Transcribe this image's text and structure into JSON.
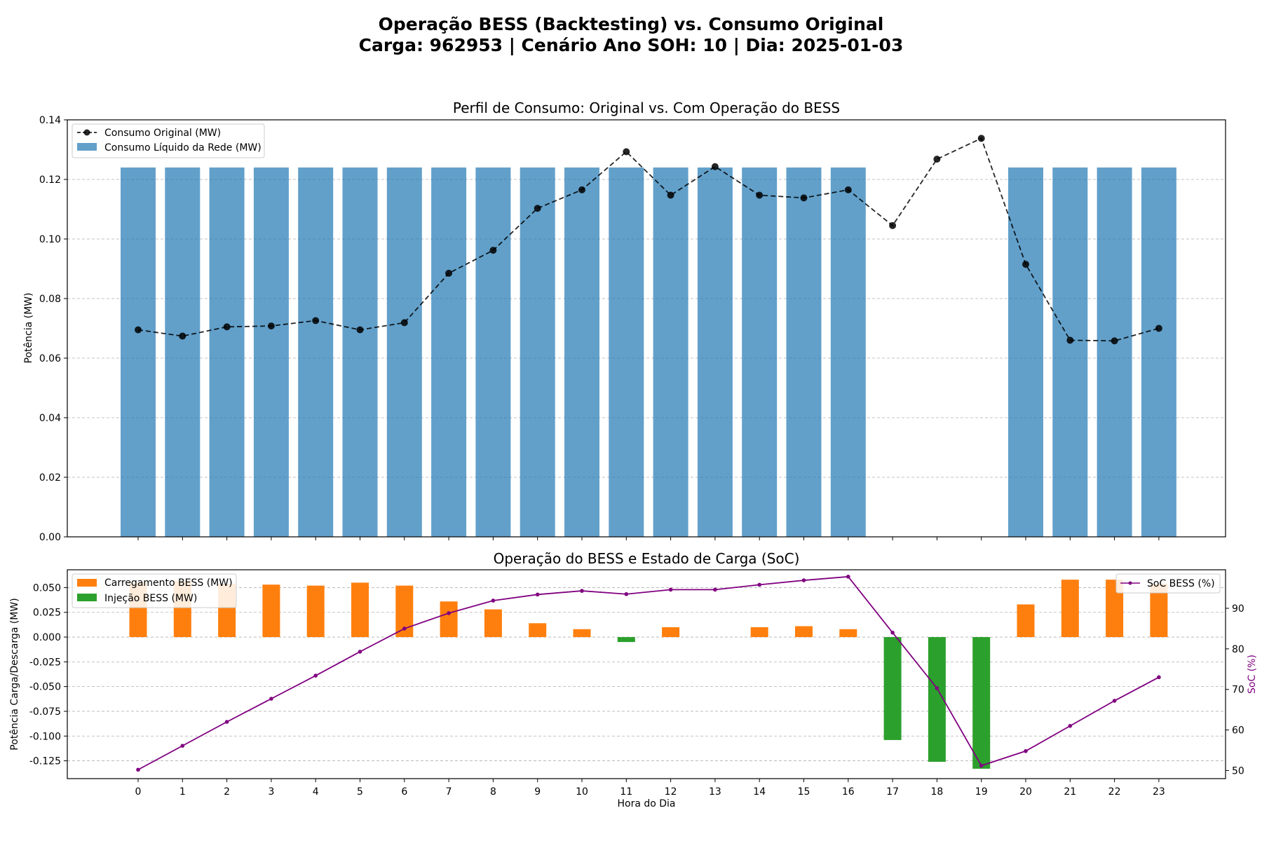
{
  "figure": {
    "title_line1": "Operação BESS (Backtesting) vs. Consumo Original",
    "title_line2": "Carga: 962953 | Cenário Ano SOH: 10 | Dia: 2025-01-03"
  },
  "chart_data": [
    {
      "type": "bar",
      "title": "Perfil de Consumo: Original vs. Com Operação do BESS",
      "xlabel": "",
      "ylabel": "Potência (MW)",
      "ylim": [
        0,
        0.14
      ],
      "yticks": [
        "0.00",
        "0.02",
        "0.04",
        "0.06",
        "0.08",
        "0.10",
        "0.12",
        "0.14"
      ],
      "grid": "y-dashed",
      "legend_position": "top-left",
      "categories": [
        0,
        1,
        2,
        3,
        4,
        5,
        6,
        7,
        8,
        9,
        10,
        11,
        12,
        13,
        14,
        15,
        16,
        17,
        18,
        19,
        20,
        21,
        22,
        23
      ],
      "series": [
        {
          "name": "Consumo Original (MW)",
          "kind": "line-dashed-markers",
          "color": "#000000",
          "values": [
            0.0695,
            0.0674,
            0.0705,
            0.0708,
            0.0726,
            0.0695,
            0.0719,
            0.0885,
            0.0962,
            0.1103,
            0.1165,
            0.1293,
            0.1147,
            0.1243,
            0.1147,
            0.1138,
            0.1165,
            0.1045,
            0.1268,
            0.1338,
            0.0915,
            0.066,
            0.0658,
            0.07
          ]
        },
        {
          "name": "Consumo Líquido da Rede (MW)",
          "kind": "bar",
          "color": "#1f77b4",
          "values": [
            0.124,
            0.124,
            0.124,
            0.124,
            0.124,
            0.124,
            0.124,
            0.124,
            0.124,
            0.124,
            0.124,
            0.124,
            0.124,
            0.124,
            0.124,
            0.124,
            0.124,
            0,
            0,
            0,
            0.124,
            0.124,
            0.124,
            0.124
          ]
        }
      ]
    },
    {
      "type": "bar",
      "title": "Operação do BESS e Estado de Carga (SoC)",
      "xlabel": "Hora do Dia",
      "ylabel": "Potência Carga/Descarga (MW)",
      "ylabel_right": "SoC (%)",
      "ylim": [
        -0.143,
        0.068
      ],
      "yticks": [
        "-0.125",
        "-0.100",
        "-0.075",
        "-0.050",
        "-0.025",
        "0.000",
        "0.025",
        "0.050"
      ],
      "ylim_right": [
        48,
        99.5
      ],
      "yticks_right": [
        "50",
        "60",
        "70",
        "80",
        "90"
      ],
      "grid": "y-dashed",
      "categories": [
        0,
        1,
        2,
        3,
        4,
        5,
        6,
        7,
        8,
        9,
        10,
        11,
        12,
        13,
        14,
        15,
        16,
        17,
        18,
        19,
        20,
        21,
        22,
        23
      ],
      "series": [
        {
          "name": "Carregamento BESS (MW)",
          "kind": "bar",
          "color": "#ff7f0e",
          "legend_position": "top-left",
          "values": [
            0.055,
            0.057,
            0.054,
            0.053,
            0.052,
            0.055,
            0.052,
            0.036,
            0.028,
            0.014,
            0.008,
            0,
            0.01,
            0,
            0.01,
            0.011,
            0.008,
            0,
            0,
            0,
            0.033,
            0.058,
            0.058,
            0.054
          ]
        },
        {
          "name": "Injeção BESS (MW)",
          "kind": "bar",
          "color": "#2ca02c",
          "legend_position": "top-left",
          "values": [
            0,
            0,
            0,
            0,
            0,
            0,
            0,
            0,
            0,
            0,
            0,
            -0.005,
            0,
            0,
            0,
            0,
            0,
            -0.104,
            -0.126,
            -0.133,
            0,
            0,
            0,
            0
          ]
        },
        {
          "name": "SoC BESS (%)",
          "kind": "line-markers-right-axis",
          "color": "#800080",
          "legend_position": "top-right",
          "values": [
            50.2,
            56.1,
            62.0,
            67.7,
            73.4,
            79.3,
            85.0,
            88.8,
            91.9,
            93.4,
            94.3,
            93.5,
            94.6,
            94.6,
            95.8,
            96.9,
            97.8,
            84.0,
            70.3,
            51.2,
            54.8,
            61.0,
            67.2,
            73.0
          ]
        }
      ]
    }
  ]
}
